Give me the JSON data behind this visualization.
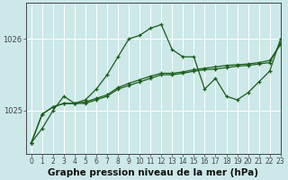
{
  "title": "Graphe pression niveau de la mer (hPa)",
  "bg_color": "#cce8e8",
  "plot_bg_color": "#cce8e8",
  "grid_color": "#ffffff",
  "line_color": "#1a5c1a",
  "xlim": [
    -0.5,
    23
  ],
  "ylim": [
    1024.4,
    1026.5
  ],
  "yticks": [
    1025,
    1026
  ],
  "xticks": [
    0,
    1,
    2,
    3,
    4,
    5,
    6,
    7,
    8,
    9,
    10,
    11,
    12,
    13,
    14,
    15,
    16,
    17,
    18,
    19,
    20,
    21,
    22,
    23
  ],
  "series_main": [
    1024.55,
    1024.75,
    1025.0,
    1025.2,
    1025.1,
    1025.15,
    1025.3,
    1025.5,
    1025.75,
    1026.0,
    1026.05,
    1026.15,
    1026.2,
    1025.85,
    1025.75,
    1025.75,
    1025.3,
    1025.45,
    1025.2,
    1025.15,
    1025.25,
    1025.4,
    1025.55,
    1026.0
  ],
  "series_flat1": [
    1024.55,
    1024.95,
    1025.05,
    1025.1,
    1025.1,
    1025.1,
    1025.15,
    1025.2,
    1025.3,
    1025.35,
    1025.4,
    1025.45,
    1025.5,
    1025.5,
    1025.52,
    1025.55,
    1025.57,
    1025.58,
    1025.6,
    1025.62,
    1025.63,
    1025.65,
    1025.67,
    1025.95
  ],
  "series_flat2": [
    1024.55,
    1024.95,
    1025.05,
    1025.1,
    1025.1,
    1025.12,
    1025.17,
    1025.22,
    1025.32,
    1025.38,
    1025.43,
    1025.48,
    1025.52,
    1025.52,
    1025.54,
    1025.57,
    1025.59,
    1025.61,
    1025.63,
    1025.64,
    1025.65,
    1025.67,
    1025.7,
    1025.92
  ],
  "tick_fontsize": 6.0,
  "title_fontsize": 7.5
}
